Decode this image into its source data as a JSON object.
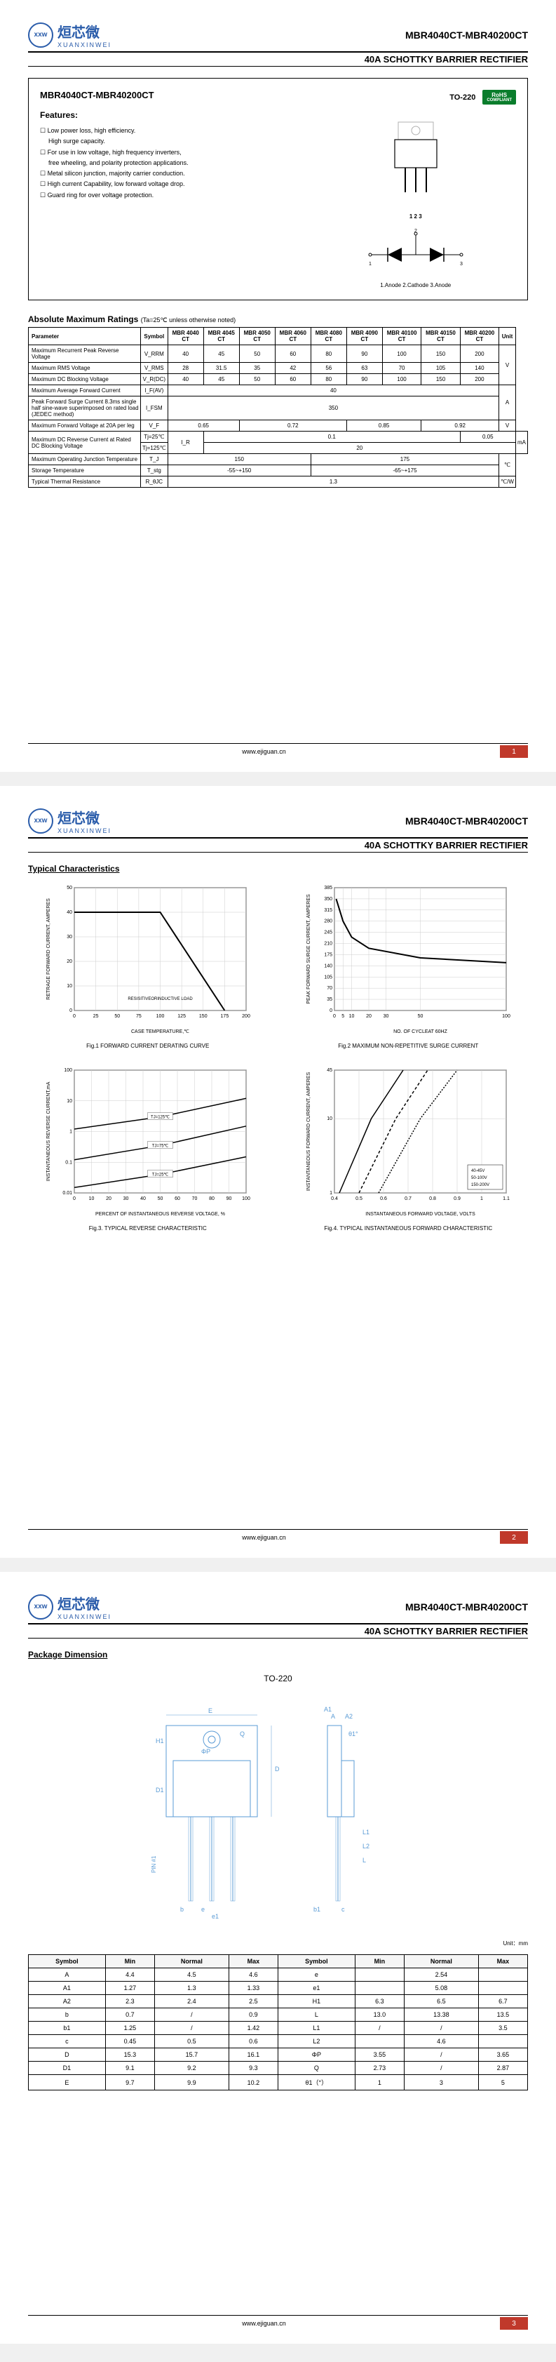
{
  "logo": {
    "cn": "烜芯微",
    "en": "XUANXINWEI",
    "icon": "xxw"
  },
  "header": {
    "title": "MBR4040CT-MBR40200CT",
    "subtitle": "40A SCHOTTKY BARRIER RECTIFIER"
  },
  "partNo": "MBR4040CT-MBR40200CT",
  "featuresTitle": "Features:",
  "features": [
    "Low power loss, high efficiency.",
    "High surge capacity.",
    "For use in low voltage, high frequency inverters,",
    "free wheeling, and polarity protection applications.",
    "Metal silicon junction, majority carrier conduction.",
    "High current Capability, low forward voltage drop.",
    "Guard ring for over voltage protection."
  ],
  "featureIndent": [
    false,
    true,
    false,
    true,
    false,
    false,
    false
  ],
  "pkg": {
    "name": "TO-220",
    "rohs": "RoHS",
    "rohsSub": "COMPLIANT",
    "pins": "1 2 3",
    "pinLabels": "1.Anode  2.Cathode  3.Anode"
  },
  "ratingsTitle": "Absolute Maximum Ratings",
  "ratingsCond": "(Ta=25℃ unless otherwise noted)",
  "ratingsHeaders": [
    "Parameter",
    "Symbol",
    "MBR 4040 CT",
    "MBR 4045 CT",
    "MBR 4050 CT",
    "MBR 4060 CT",
    "MBR 4080 CT",
    "MBR 4090 CT",
    "MBR 40100 CT",
    "MBR 40150 CT",
    "MBR 40200 CT",
    "Unit"
  ],
  "ratingsRows": [
    {
      "param": "Maximum Recurrent Peak Reverse Voltage",
      "symbol": "V_RRM",
      "vals": [
        "40",
        "45",
        "50",
        "60",
        "80",
        "90",
        "100",
        "150",
        "200"
      ],
      "unit": ""
    },
    {
      "param": "Maximum RMS Voltage",
      "symbol": "V_RMS",
      "vals": [
        "28",
        "31.5",
        "35",
        "42",
        "56",
        "63",
        "70",
        "105",
        "140"
      ],
      "unit": "V"
    },
    {
      "param": "Maximum DC Blocking Voltage",
      "symbol": "V_R(DC)",
      "vals": [
        "40",
        "45",
        "50",
        "60",
        "80",
        "90",
        "100",
        "150",
        "200"
      ],
      "unit": ""
    }
  ],
  "ratingsSpecial": [
    {
      "param": "Maximum Average Forward Current",
      "symbol": "I_F(AV)",
      "span": "40",
      "unit": "A",
      "unitRowspan": 2
    },
    {
      "param": "Peak Forward Surge Current 8.3ms single half sine-wave superimposed on rated load (JEDEC method)",
      "symbol": "I_FSM",
      "span": "350",
      "unit": ""
    },
    {
      "param": "Maximum Forward Voltage at 20A per leg",
      "symbol": "V_F",
      "vals": [
        [
          "0.65",
          2
        ],
        [
          "0.72",
          3
        ],
        [
          "0.85",
          2
        ],
        [
          "0.92",
          2
        ]
      ],
      "unit": "V"
    }
  ],
  "dcReverse": {
    "param": "Maximum DC Reverse Current at Rated DC Blocking Voltage",
    "symbol": "I_R",
    "rows": [
      {
        "cond": "Tj=25℃",
        "vals": [
          [
            "0.1",
            7
          ],
          [
            "0.05",
            2
          ]
        ],
        "unit": "mA"
      },
      {
        "cond": "Tj=125℃",
        "vals": [
          [
            "20",
            9
          ]
        ],
        "unit": ""
      }
    ]
  },
  "ratingsTail": [
    {
      "param": "Maximum Operating Junction Temperature",
      "symbol": "T_J",
      "vals": [
        [
          "150",
          4
        ],
        [
          "175",
          5
        ]
      ],
      "unit": "℃",
      "unitRowspan": 2
    },
    {
      "param": "Storage Temperature",
      "symbol": "T_stg",
      "vals": [
        [
          "-55~+150",
          4
        ],
        [
          "-65~+175",
          5
        ]
      ],
      "unit": ""
    },
    {
      "param": "Typical Thermal Resistance",
      "symbol": "R_θJC",
      "span": "1.3",
      "unit": "℃/W"
    }
  ],
  "footer": {
    "url": "www.ejiguan.cn"
  },
  "page2": {
    "title": "Typical Characteristics",
    "charts": [
      {
        "caption": "Fig.1 FORWARD CURRENT DERATING CURVE",
        "xlabel": "CASE TEMPERATURE,℃",
        "ylabel": "RETRAGE FORWARD CURRENT, AMPERES",
        "xlim": [
          0,
          200
        ],
        "ylim": [
          0,
          50
        ],
        "xticks": [
          0,
          25,
          50,
          75,
          100,
          125,
          150,
          175,
          200
        ],
        "yticks": [
          0,
          10,
          20,
          30,
          40,
          50
        ],
        "line": [
          [
            0,
            40
          ],
          [
            100,
            40
          ],
          [
            175,
            0
          ]
        ],
        "note": "RESISITIVEORINDUCTIVE LOAD",
        "grid_color": "#ccc",
        "line_color": "#000",
        "line_width": 2
      },
      {
        "caption": "Fig.2 MAXIMUM NON-REPETITIVE SURGE CURRENT",
        "xlabel": "NO. OF CYCLEAT 60HZ",
        "ylabel": "PEAK FORWARD SURGE CURRENT, AMPERES",
        "xlim": [
          0,
          100
        ],
        "ylim": [
          0,
          385
        ],
        "xticks": [
          0,
          5,
          10,
          20,
          30,
          50,
          100
        ],
        "yticks": [
          0,
          35,
          70,
          105,
          140,
          175,
          210,
          245,
          280,
          315,
          350,
          385
        ],
        "line": [
          [
            1,
            350
          ],
          [
            5,
            280
          ],
          [
            10,
            230
          ],
          [
            20,
            195
          ],
          [
            50,
            165
          ],
          [
            100,
            150
          ]
        ],
        "grid_color": "#ccc",
        "line_color": "#000",
        "line_width": 2
      },
      {
        "caption": "Fig.3. TYPICAL REVERSE CHARACTERISTIC",
        "xlabel": "PERCENT OF INSTANTANEOUS REVERSE VOLTAGE, %",
        "ylabel": "INSTANTANEOUS REVERSE CURRENT,mA",
        "xlim": [
          0,
          100
        ],
        "ylim": [
          0.01,
          100
        ],
        "yscale": "log",
        "xticks": [
          0,
          10,
          20,
          30,
          40,
          50,
          60,
          70,
          80,
          90,
          100
        ],
        "yticks": [
          0.01,
          0.1,
          1,
          10,
          100
        ],
        "lines": [
          {
            "label": "TJ=125℃",
            "pts": [
              [
                0,
                1.2
              ],
              [
                50,
                3
              ],
              [
                100,
                12
              ]
            ]
          },
          {
            "label": "TJ=75℃",
            "pts": [
              [
                0,
                0.12
              ],
              [
                50,
                0.35
              ],
              [
                100,
                1.5
              ]
            ]
          },
          {
            "label": "TJ=25℃",
            "pts": [
              [
                0,
                0.015
              ],
              [
                50,
                0.04
              ],
              [
                100,
                0.15
              ]
            ]
          }
        ],
        "grid_color": "#ccc",
        "line_color": "#000",
        "line_width": 1.5
      },
      {
        "caption": "Fig.4. TYPICAL INSTANTANEOUS FORWARD CHARACTERISTIC",
        "xlabel": "INSTANTANEOUS FORWARD VOLTAGE, VOLTS",
        "ylabel": "INSTANTANEOUS FORWARD CURRENT, AMPERES",
        "xlim": [
          0.4,
          1.1
        ],
        "ylim": [
          1,
          45
        ],
        "yscale": "log",
        "xticks": [
          0.4,
          0.5,
          0.6,
          0.7,
          0.8,
          0.9,
          1.0,
          1.1
        ],
        "yticks": [
          1,
          10,
          45
        ],
        "legend": [
          "40-45V",
          "50-100V",
          "150-200V"
        ],
        "lines": [
          {
            "dash": "none",
            "pts": [
              [
                0.42,
                1
              ],
              [
                0.55,
                10
              ],
              [
                0.68,
                45
              ]
            ]
          },
          {
            "dash": "4,3",
            "pts": [
              [
                0.5,
                1
              ],
              [
                0.65,
                10
              ],
              [
                0.78,
                45
              ]
            ]
          },
          {
            "dash": "2,2",
            "pts": [
              [
                0.58,
                1
              ],
              [
                0.75,
                10
              ],
              [
                0.9,
                45
              ]
            ]
          }
        ],
        "grid_color": "#ccc",
        "line_color": "#000",
        "line_width": 1.5
      }
    ]
  },
  "page3": {
    "title": "Package Dimension",
    "pkg": "TO-220",
    "unit": "Unit：mm",
    "dimHeaders": [
      "Symbol",
      "Min",
      "Normal",
      "Max",
      "Symbol",
      "Min",
      "Normal",
      "Max"
    ],
    "dimRows": [
      [
        "A",
        "4.4",
        "4.5",
        "4.6",
        "e",
        "",
        "2.54",
        ""
      ],
      [
        "A1",
        "1.27",
        "1.3",
        "1.33",
        "e1",
        "",
        "5.08",
        ""
      ],
      [
        "A2",
        "2.3",
        "2.4",
        "2.5",
        "H1",
        "6.3",
        "6.5",
        "6.7"
      ],
      [
        "b",
        "0.7",
        "/",
        "0.9",
        "L",
        "13.0",
        "13.38",
        "13.5"
      ],
      [
        "b1",
        "1.25",
        "/",
        "1.42",
        "L1",
        "/",
        "/",
        "3.5"
      ],
      [
        "c",
        "0.45",
        "0.5",
        "0.6",
        "L2",
        "",
        "4.6",
        ""
      ],
      [
        "D",
        "15.3",
        "15.7",
        "16.1",
        "ΦP",
        "3.55",
        "/",
        "3.65"
      ],
      [
        "D1",
        "9.1",
        "9.2",
        "9.3",
        "Q",
        "2.73",
        "/",
        "2.87"
      ],
      [
        "E",
        "9.7",
        "9.9",
        "10.2",
        "θ1（°）",
        "1",
        "3",
        "5"
      ]
    ]
  }
}
